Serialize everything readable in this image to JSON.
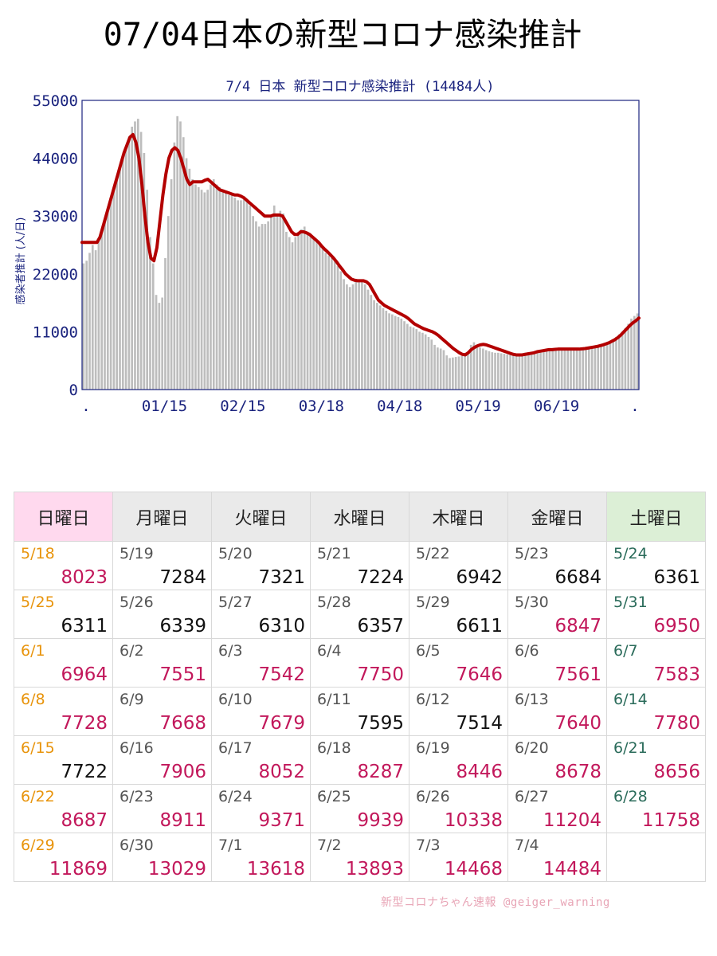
{
  "page_title": "07/04日本の新型コロナ感染推計",
  "chart_data": {
    "type": "bar",
    "title": "7/4 日本 新型コロナ感染推計 (14484人)",
    "ylabel": "感染者推計 (人/日)",
    "xlabel": "",
    "ylim": [
      0,
      55000
    ],
    "y_ticks": [
      "0",
      "11000",
      "22000",
      "33000",
      "44000",
      "55000"
    ],
    "x_tick_labels": [
      ".",
      "01/15",
      "02/15",
      "03/18",
      "04/18",
      "05/19",
      "06/19",
      "."
    ],
    "grid": false,
    "colors": {
      "bars": "#bdbdbd",
      "line": "#b30000",
      "axis_text": "#1a237e",
      "frame": "#1a237e"
    },
    "series": [
      {
        "kind": "bar",
        "values": [
          24000,
          24500,
          26000,
          27500,
          26500,
          28500,
          30000,
          32000,
          34000,
          36000,
          38000,
          40000,
          42000,
          44000,
          46000,
          48000,
          50000,
          51000,
          51500,
          49000,
          45000,
          38000,
          29000,
          24000,
          18000,
          16500,
          17500,
          25000,
          33000,
          40000,
          47000,
          52000,
          51000,
          48000,
          44000,
          42000,
          40000,
          39000,
          38500,
          38000,
          37500,
          38000,
          39000,
          40000,
          39000,
          38500,
          38000,
          37500,
          37000,
          37000,
          36500,
          36000,
          36000,
          36500,
          36000,
          35000,
          33000,
          32000,
          31000,
          31500,
          31500,
          32000,
          33000,
          35000,
          33500,
          34000,
          33500,
          30000,
          29000,
          28000,
          29000,
          30000,
          30500,
          31000,
          30000,
          29500,
          29000,
          28500,
          28000,
          27000,
          26000,
          25500,
          25000,
          24500,
          23500,
          22500,
          21000,
          20000,
          19500,
          20000,
          21000,
          21000,
          20500,
          20000,
          19000,
          18000,
          17000,
          16500,
          16000,
          15500,
          15000,
          14500,
          14300,
          14000,
          13800,
          13500,
          13000,
          12500,
          12000,
          11800,
          11500,
          11000,
          10800,
          10500,
          10000,
          9500,
          8500,
          8000,
          7800,
          7500,
          6500,
          6000,
          6100,
          6200,
          6300,
          6400,
          6600,
          7000,
          8500,
          9000,
          8200,
          8000,
          7800,
          7500,
          7300,
          7100,
          7000,
          7000,
          6900,
          6800,
          6700,
          6600,
          6500,
          6600,
          6700,
          6800,
          7000,
          7100,
          7200,
          7300,
          7400,
          7500,
          7500,
          7600,
          7700,
          7700,
          7700,
          7700,
          7700,
          7700,
          7700,
          7700,
          7700,
          7700,
          7700,
          7700,
          7800,
          7800,
          7900,
          8000,
          8100,
          8200,
          8400,
          8700,
          9000,
          9500,
          10000,
          10500,
          11000,
          11700,
          12500,
          13500,
          14000,
          14484
        ]
      },
      {
        "kind": "line",
        "name": "",
        "values": [
          28000,
          28000,
          28000,
          28000,
          28000,
          28000,
          29000,
          31000,
          33000,
          35000,
          37000,
          39000,
          41000,
          43000,
          45000,
          46500,
          48000,
          48500,
          47000,
          44000,
          39000,
          33000,
          28000,
          25000,
          24500,
          27000,
          32000,
          37000,
          41000,
          44000,
          45500,
          46000,
          45500,
          44000,
          42000,
          40000,
          39000,
          39500,
          39500,
          39500,
          39500,
          39800,
          40000,
          39500,
          39000,
          38500,
          38000,
          37800,
          37600,
          37400,
          37200,
          37000,
          37000,
          36800,
          36500,
          36000,
          35500,
          35000,
          34500,
          34000,
          33500,
          33000,
          33000,
          33000,
          33200,
          33200,
          33200,
          33000,
          32000,
          31000,
          30000,
          29500,
          29500,
          30000,
          30000,
          29800,
          29500,
          29000,
          28500,
          28000,
          27300,
          26700,
          26200,
          25600,
          25000,
          24300,
          23500,
          22800,
          22000,
          21500,
          21000,
          20800,
          20700,
          20700,
          20700,
          20500,
          20000,
          19000,
          18000,
          17000,
          16500,
          16000,
          15700,
          15400,
          15100,
          14800,
          14500,
          14200,
          13900,
          13500,
          13000,
          12500,
          12200,
          11900,
          11600,
          11400,
          11200,
          11000,
          10700,
          10300,
          9800,
          9300,
          8800,
          8300,
          7800,
          7400,
          7000,
          6700,
          6600,
          7000,
          7600,
          8000,
          8300,
          8500,
          8600,
          8500,
          8300,
          8100,
          7900,
          7700,
          7500,
          7300,
          7100,
          6900,
          6700,
          6600,
          6600,
          6600,
          6700,
          6800,
          6900,
          7000,
          7200,
          7300,
          7400,
          7500,
          7600,
          7600,
          7650,
          7700,
          7700,
          7700,
          7700,
          7700,
          7700,
          7700,
          7700,
          7750,
          7800,
          7900,
          8000,
          8100,
          8200,
          8350,
          8500,
          8700,
          8900,
          9200,
          9500,
          9900,
          10400,
          11000,
          11600,
          12200,
          12700,
          13100,
          13600
        ]
      }
    ]
  },
  "calendar": {
    "headers": [
      "日曜日",
      "月曜日",
      "火曜日",
      "水曜日",
      "木曜日",
      "金曜日",
      "土曜日"
    ],
    "header_colors": [
      "#ffd9ee",
      "#eaeaea",
      "#eaeaea",
      "#eaeaea",
      "#eaeaea",
      "#eaeaea",
      "#dcefd6"
    ],
    "date_colors": [
      "#e8940c",
      "#555555",
      "#555555",
      "#555555",
      "#555555",
      "#555555",
      "#2a6b5a"
    ],
    "value_colors": {
      "up": "#c2185b",
      "down": "#111111"
    },
    "weeks": [
      [
        {
          "date": "5/18",
          "value": "8023",
          "trend": "up"
        },
        {
          "date": "5/19",
          "value": "7284",
          "trend": "down"
        },
        {
          "date": "5/20",
          "value": "7321",
          "trend": "down"
        },
        {
          "date": "5/21",
          "value": "7224",
          "trend": "down"
        },
        {
          "date": "5/22",
          "value": "6942",
          "trend": "down"
        },
        {
          "date": "5/23",
          "value": "6684",
          "trend": "down"
        },
        {
          "date": "5/24",
          "value": "6361",
          "trend": "down"
        }
      ],
      [
        {
          "date": "5/25",
          "value": "6311",
          "trend": "down"
        },
        {
          "date": "5/26",
          "value": "6339",
          "trend": "down"
        },
        {
          "date": "5/27",
          "value": "6310",
          "trend": "down"
        },
        {
          "date": "5/28",
          "value": "6357",
          "trend": "down"
        },
        {
          "date": "5/29",
          "value": "6611",
          "trend": "down"
        },
        {
          "date": "5/30",
          "value": "6847",
          "trend": "up"
        },
        {
          "date": "5/31",
          "value": "6950",
          "trend": "up"
        }
      ],
      [
        {
          "date": "6/1",
          "value": "6964",
          "trend": "up"
        },
        {
          "date": "6/2",
          "value": "7551",
          "trend": "up"
        },
        {
          "date": "6/3",
          "value": "7542",
          "trend": "up"
        },
        {
          "date": "6/4",
          "value": "7750",
          "trend": "up"
        },
        {
          "date": "6/5",
          "value": "7646",
          "trend": "up"
        },
        {
          "date": "6/6",
          "value": "7561",
          "trend": "up"
        },
        {
          "date": "6/7",
          "value": "7583",
          "trend": "up"
        }
      ],
      [
        {
          "date": "6/8",
          "value": "7728",
          "trend": "up"
        },
        {
          "date": "6/9",
          "value": "7668",
          "trend": "up"
        },
        {
          "date": "6/10",
          "value": "7679",
          "trend": "up"
        },
        {
          "date": "6/11",
          "value": "7595",
          "trend": "down"
        },
        {
          "date": "6/12",
          "value": "7514",
          "trend": "down"
        },
        {
          "date": "6/13",
          "value": "7640",
          "trend": "up"
        },
        {
          "date": "6/14",
          "value": "7780",
          "trend": "up"
        }
      ],
      [
        {
          "date": "6/15",
          "value": "7722",
          "trend": "down"
        },
        {
          "date": "6/16",
          "value": "7906",
          "trend": "up"
        },
        {
          "date": "6/17",
          "value": "8052",
          "trend": "up"
        },
        {
          "date": "6/18",
          "value": "8287",
          "trend": "up"
        },
        {
          "date": "6/19",
          "value": "8446",
          "trend": "up"
        },
        {
          "date": "6/20",
          "value": "8678",
          "trend": "up"
        },
        {
          "date": "6/21",
          "value": "8656",
          "trend": "up"
        }
      ],
      [
        {
          "date": "6/22",
          "value": "8687",
          "trend": "up"
        },
        {
          "date": "6/23",
          "value": "8911",
          "trend": "up"
        },
        {
          "date": "6/24",
          "value": "9371",
          "trend": "up"
        },
        {
          "date": "6/25",
          "value": "9939",
          "trend": "up"
        },
        {
          "date": "6/26",
          "value": "10338",
          "trend": "up"
        },
        {
          "date": "6/27",
          "value": "11204",
          "trend": "up"
        },
        {
          "date": "6/28",
          "value": "11758",
          "trend": "up"
        }
      ],
      [
        {
          "date": "6/29",
          "value": "11869",
          "trend": "up"
        },
        {
          "date": "6/30",
          "value": "13029",
          "trend": "up"
        },
        {
          "date": "7/1",
          "value": "13618",
          "trend": "up"
        },
        {
          "date": "7/2",
          "value": "13893",
          "trend": "up"
        },
        {
          "date": "7/3",
          "value": "14468",
          "trend": "up"
        },
        {
          "date": "7/4",
          "value": "14484",
          "trend": "up"
        },
        {
          "date": "",
          "value": "",
          "trend": ""
        }
      ]
    ]
  },
  "footer": {
    "credit": "新型コロナちゃん速報  @geiger_warning"
  }
}
